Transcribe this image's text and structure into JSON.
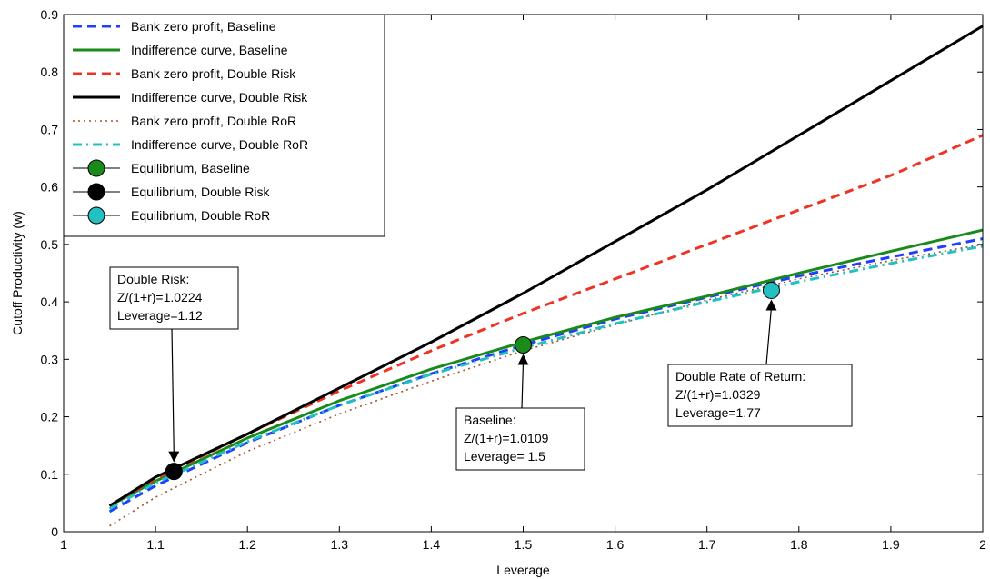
{
  "chart_data": {
    "type": "line",
    "title": "",
    "xlabel": "Leverage",
    "ylabel": "Cutoff Productivity (w)",
    "xlim": [
      1,
      2
    ],
    "ylim": [
      0,
      0.9
    ],
    "xticks": [
      "1",
      "1.1",
      "1.2",
      "1.3",
      "1.4",
      "1.5",
      "1.6",
      "1.7",
      "1.8",
      "1.9",
      "2"
    ],
    "yticks": [
      "0",
      "0.1",
      "0.2",
      "0.3",
      "0.4",
      "0.5",
      "0.6",
      "0.7",
      "0.8",
      "0.9"
    ],
    "grid": false,
    "legend_position": "top-left",
    "series": [
      {
        "name": "Bank zero profit, Baseline",
        "color": "#1f3fff",
        "style": "dashed",
        "x": [
          1.05,
          1.1,
          1.2,
          1.3,
          1.4,
          1.5,
          1.6,
          1.7,
          1.8,
          1.9,
          2.0
        ],
        "y": [
          0.035,
          0.08,
          0.155,
          0.22,
          0.275,
          0.325,
          0.37,
          0.408,
          0.445,
          0.478,
          0.51
        ]
      },
      {
        "name": "Indifference curve, Baseline",
        "color": "#1a8a1a",
        "style": "solid",
        "x": [
          1.05,
          1.1,
          1.2,
          1.3,
          1.4,
          1.5,
          1.6,
          1.7,
          1.8,
          1.9,
          2.0
        ],
        "y": [
          0.045,
          0.088,
          0.163,
          0.228,
          0.283,
          0.33,
          0.373,
          0.41,
          0.45,
          0.488,
          0.525
        ]
      },
      {
        "name": "Bank zero profit, Double Risk",
        "color": "#ee3322",
        "style": "dashed",
        "x": [
          1.05,
          1.1,
          1.2,
          1.3,
          1.4,
          1.5,
          1.6,
          1.7,
          1.8,
          1.9,
          2.0
        ],
        "y": [
          0.045,
          0.092,
          0.17,
          0.245,
          0.315,
          0.38,
          0.44,
          0.5,
          0.56,
          0.62,
          0.69
        ]
      },
      {
        "name": "Indifference curve, Double Risk",
        "color": "#000000",
        "style": "solid",
        "x": [
          1.05,
          1.1,
          1.2,
          1.3,
          1.4,
          1.5,
          1.6,
          1.7,
          1.8,
          1.9,
          2.0
        ],
        "y": [
          0.045,
          0.095,
          0.17,
          0.25,
          0.33,
          0.415,
          0.505,
          0.595,
          0.69,
          0.785,
          0.88
        ]
      },
      {
        "name": "Bank zero profit, Double RoR",
        "color": "#a0522d",
        "style": "dotted",
        "x": [
          1.05,
          1.1,
          1.2,
          1.3,
          1.4,
          1.5,
          1.6,
          1.7,
          1.8,
          1.9,
          2.0
        ],
        "y": [
          0.01,
          0.06,
          0.14,
          0.205,
          0.262,
          0.315,
          0.36,
          0.403,
          0.44,
          0.472,
          0.5
        ]
      },
      {
        "name": "Indifference curve, Double RoR",
        "color": "#22c0c0",
        "style": "dashdot",
        "x": [
          1.05,
          1.1,
          1.2,
          1.3,
          1.4,
          1.5,
          1.6,
          1.7,
          1.8,
          1.9,
          2.0
        ],
        "y": [
          0.04,
          0.085,
          0.157,
          0.22,
          0.274,
          0.32,
          0.362,
          0.4,
          0.435,
          0.467,
          0.497
        ]
      }
    ],
    "points": [
      {
        "name": "Equilibrium, Baseline",
        "color": "#1a8a1a",
        "x": 1.5,
        "y": 0.325
      },
      {
        "name": "Equilibrium, Double Risk",
        "color": "#000000",
        "x": 1.12,
        "y": 0.105
      },
      {
        "name": "Equilibrium, Double RoR",
        "color": "#22c0c0",
        "x": 1.77,
        "y": 0.42
      }
    ],
    "annotations": [
      {
        "lines": [
          "Double Risk:",
          "Z/(1+r)=1.0224",
          "Leverage=1.12"
        ],
        "target_x": 1.12,
        "target_y": 0.105
      },
      {
        "lines": [
          "Baseline:",
          "Z/(1+r)=1.0109",
          "Leverage= 1.5"
        ],
        "target_x": 1.5,
        "target_y": 0.325
      },
      {
        "lines": [
          "Double Rate of Return:",
          "Z/(1+r)=1.0329",
          "Leverage=1.77"
        ],
        "target_x": 1.77,
        "target_y": 0.42
      }
    ]
  }
}
